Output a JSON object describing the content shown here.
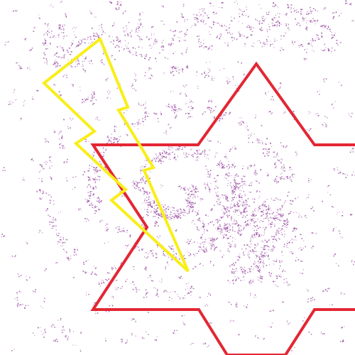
{
  "canvas": {
    "background": "#ffffff"
  },
  "shapes": {
    "star": {
      "name": "six-point-star-outline",
      "stroke": "#e32733"
    },
    "bolt": {
      "name": "lightning-bolt-outline",
      "stroke": "#f9ee19"
    },
    "dots": {
      "name": "purple-dot-scatter",
      "color": "#9b4ea3"
    }
  }
}
